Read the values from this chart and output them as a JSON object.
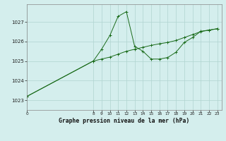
{
  "title": "Graphe pression niveau de la mer (hPa)",
  "bg_color": "#d4eeed",
  "line_color": "#1a6b1a",
  "grid_color": "#b0d4d0",
  "yticks": [
    1023,
    1024,
    1025,
    1026,
    1027
  ],
  "ylim": [
    1022.5,
    1027.9
  ],
  "xmin": 0,
  "xmax": 23.5,
  "x_ticks": [
    0,
    8,
    9,
    10,
    11,
    12,
    13,
    14,
    15,
    16,
    17,
    18,
    19,
    20,
    21,
    22,
    23
  ],
  "x_tick_labels": [
    "0",
    "8",
    "9",
    "10",
    "11",
    "12",
    "13",
    "14",
    "15",
    "16",
    "17",
    "18",
    "19",
    "20",
    "21",
    "22",
    "23"
  ],
  "smooth_x": [
    0,
    8,
    9,
    10,
    11,
    12,
    13,
    14,
    15,
    16,
    17,
    18,
    19,
    20,
    21,
    22,
    23
  ],
  "smooth_y": [
    1023.2,
    1025.0,
    1025.1,
    1025.2,
    1025.35,
    1025.5,
    1025.6,
    1025.7,
    1025.8,
    1025.88,
    1025.95,
    1026.05,
    1026.2,
    1026.35,
    1026.5,
    1026.58,
    1026.65
  ],
  "jagged_x": [
    0,
    8,
    9,
    10,
    11,
    12,
    13,
    14,
    15,
    16,
    17,
    18,
    19,
    20,
    21,
    22,
    23
  ],
  "jagged_y": [
    1023.2,
    1025.0,
    1025.6,
    1026.3,
    1027.28,
    1027.52,
    1025.75,
    1025.5,
    1025.1,
    1025.1,
    1025.18,
    1025.45,
    1025.95,
    1026.2,
    1026.52,
    1026.58,
    1026.65
  ]
}
